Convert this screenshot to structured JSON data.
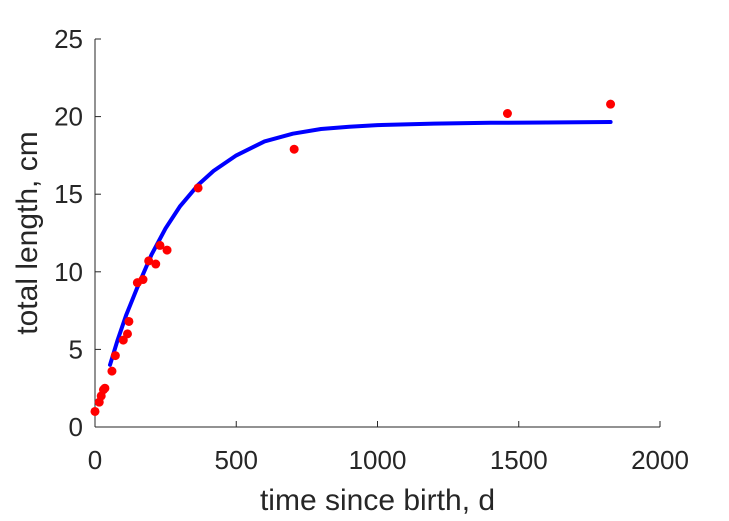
{
  "chart_data": {
    "type": "scatter",
    "title": "",
    "xlabel": "time since birth, d",
    "ylabel": "total length, cm",
    "xlim": [
      0,
      2000
    ],
    "ylim": [
      0,
      25
    ],
    "xticks": [
      0,
      500,
      1000,
      1500,
      2000
    ],
    "yticks": [
      0,
      5,
      10,
      15,
      20,
      25
    ],
    "grid": false,
    "legend": "none",
    "colors": {
      "points": "#ff0000",
      "fit": "#0000ff",
      "axes": "#262626"
    },
    "series": [
      {
        "kind": "points",
        "x": [
          0,
          15,
          22,
          30,
          35,
          60,
          72,
          100,
          115,
          120,
          150,
          170,
          190,
          215,
          230,
          255,
          365,
          705,
          1460,
          1825
        ],
        "y": [
          1.0,
          1.6,
          2.0,
          2.4,
          2.5,
          3.6,
          4.6,
          5.6,
          6.0,
          6.8,
          9.3,
          9.5,
          10.7,
          10.5,
          11.7,
          11.4,
          15.4,
          17.9,
          20.2,
          20.8
        ]
      },
      {
        "kind": "fit",
        "x": [
          53,
          80,
          110,
          150,
          200,
          250,
          300,
          365,
          420,
          500,
          600,
          700,
          800,
          900,
          1000,
          1200,
          1400,
          1600,
          1825
        ],
        "y": [
          4.0,
          5.6,
          7.2,
          9.0,
          11.1,
          12.8,
          14.2,
          15.6,
          16.5,
          17.5,
          18.4,
          18.9,
          19.2,
          19.35,
          19.45,
          19.55,
          19.6,
          19.62,
          19.65
        ]
      }
    ]
  }
}
